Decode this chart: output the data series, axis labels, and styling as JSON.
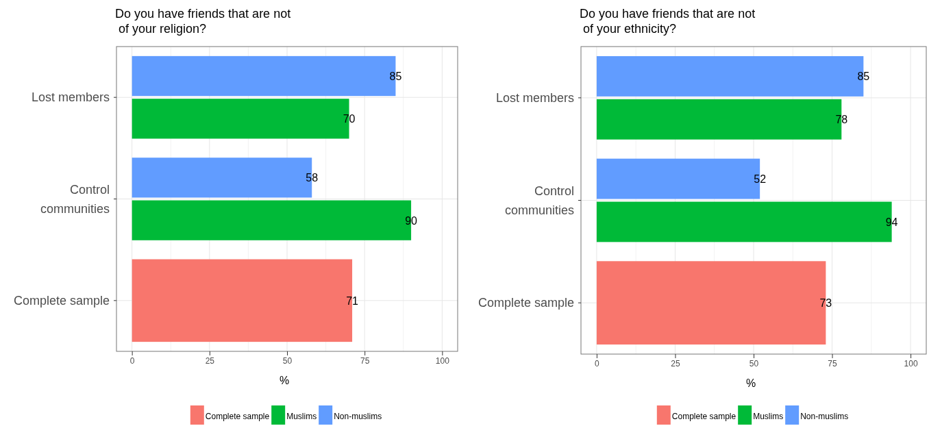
{
  "chart_data": [
    {
      "type": "bar",
      "orientation": "horizontal",
      "title": "Do you have friends that are not\n of your religion?",
      "xlabel": "%",
      "categories": [
        "Lost members",
        "Control communities",
        "Complete sample"
      ],
      "series": [
        {
          "name": "Complete sample",
          "color": "#f8766d",
          "values": [
            null,
            null,
            71
          ]
        },
        {
          "name": "Muslims",
          "color": "#00ba38",
          "values": [
            70,
            90,
            null
          ]
        },
        {
          "name": "Non-muslims",
          "color": "#619cff",
          "values": [
            85,
            58,
            null
          ]
        }
      ],
      "xlim": [
        -5,
        105
      ],
      "xticks": [
        0,
        25,
        50,
        75,
        100
      ],
      "grid": true,
      "legend": "bottom",
      "data_labels": true
    },
    {
      "type": "bar",
      "orientation": "horizontal",
      "title": "Do you have friends that are not\n of your ethnicity?",
      "xlabel": "%",
      "categories": [
        "Lost members",
        "Control communities",
        "Complete sample"
      ],
      "series": [
        {
          "name": "Complete sample",
          "color": "#f8766d",
          "values": [
            null,
            null,
            73
          ]
        },
        {
          "name": "Muslims",
          "color": "#00ba38",
          "values": [
            78,
            94,
            null
          ]
        },
        {
          "name": "Non-muslims",
          "color": "#619cff",
          "values": [
            85,
            52,
            null
          ]
        }
      ],
      "xlim": [
        -5,
        105
      ],
      "xticks": [
        0,
        25,
        50,
        75,
        100
      ],
      "grid": true,
      "legend": "bottom",
      "data_labels": true
    }
  ]
}
